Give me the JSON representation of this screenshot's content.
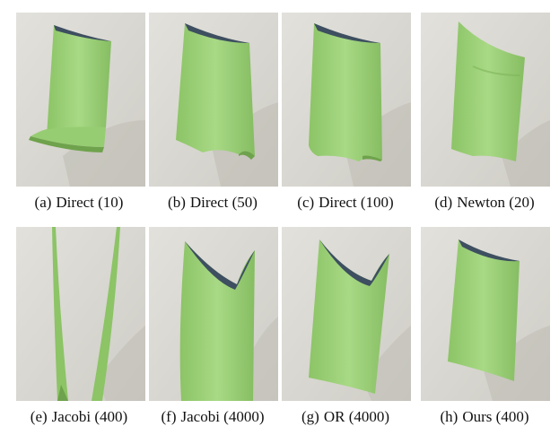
{
  "panels": [
    {
      "label": "(a)",
      "name": "Direct",
      "param": "(10)"
    },
    {
      "label": "(b)",
      "name": "Direct",
      "param": "(50)"
    },
    {
      "label": "(c)",
      "name": "Direct",
      "param": "(100)"
    },
    {
      "label": "(d)",
      "name": "Newton",
      "param": "(20)"
    },
    {
      "label": "(e)",
      "name": "Jacobi",
      "param": "(400)"
    },
    {
      "label": "(f)",
      "name": "Jacobi",
      "param": "(4000)"
    },
    {
      "label": "(g)",
      "name": "OR",
      "param": "(4000)"
    },
    {
      "label": "(h)",
      "name": "Ours",
      "param": "(400)"
    }
  ],
  "colors": {
    "cloth": "#9fd27a",
    "cloth_dark": "#6fa24c",
    "cloth_back": "#3d4f60",
    "background": "#d8d6cf"
  }
}
